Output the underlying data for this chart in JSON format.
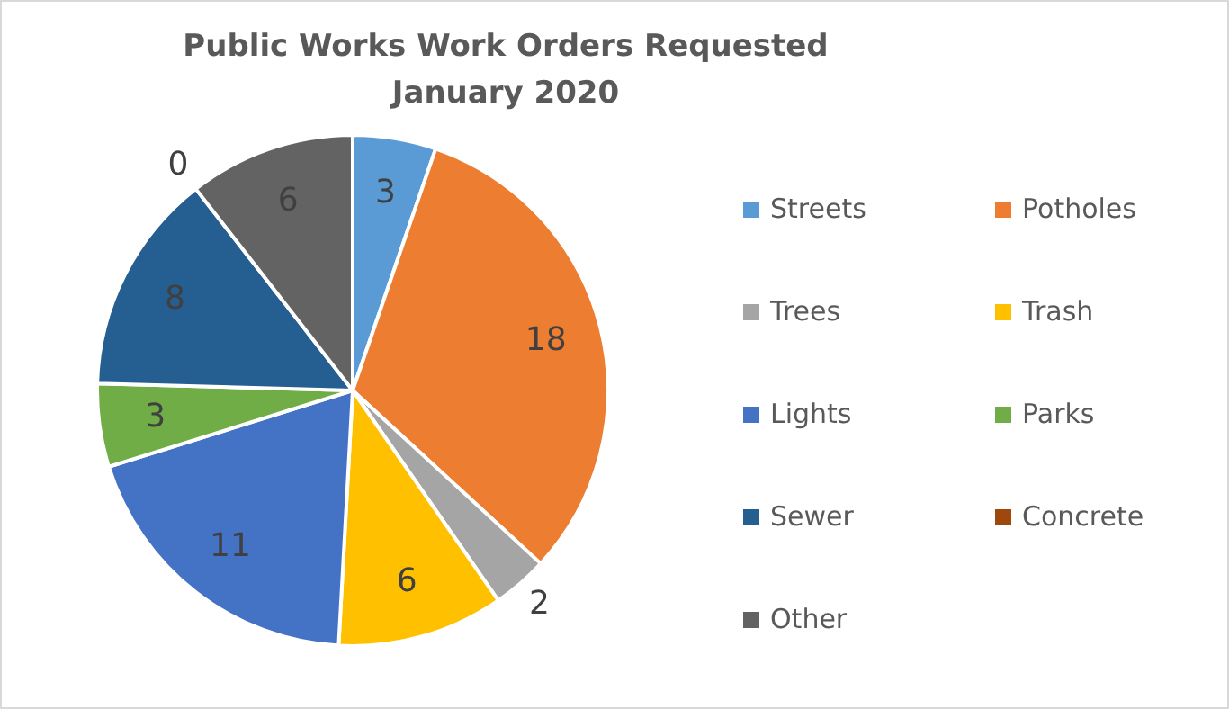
{
  "chart_data": {
    "type": "pie",
    "title": "Public Works Work Orders Requested January 2020",
    "categories": [
      "Streets",
      "Potholes",
      "Trees",
      "Trash",
      "Lights",
      "Parks",
      "Sewer",
      "Concrete",
      "Other"
    ],
    "values": [
      3,
      18,
      2,
      6,
      11,
      3,
      8,
      0,
      6
    ],
    "colors": [
      "#5b9bd5",
      "#ed7d31",
      "#a5a5a5",
      "#ffc000",
      "#4472c4",
      "#70ad47",
      "#255e91",
      "#9e480e",
      "#636363"
    ],
    "value_labels": [
      "3",
      "18",
      "2",
      "6",
      "11",
      "3",
      "8",
      "0",
      "6"
    ],
    "legend": "right"
  }
}
